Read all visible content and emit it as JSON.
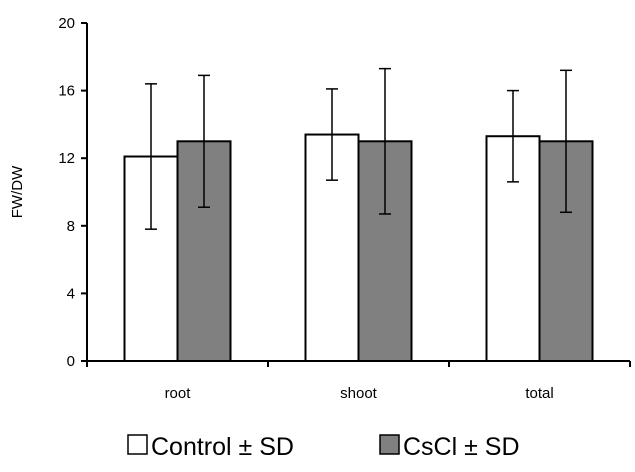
{
  "chart_data": {
    "type": "bar",
    "categories": [
      "root",
      "shoot",
      "total"
    ],
    "series": [
      {
        "name": "Control ± SD",
        "values": [
          12.1,
          13.4,
          13.3
        ],
        "error": [
          4.3,
          2.7,
          2.7
        ],
        "color": "#ffffff"
      },
      {
        "name": "CsCl ± SD",
        "values": [
          13.0,
          13.0,
          13.0
        ],
        "error": [
          3.9,
          4.3,
          4.2
        ],
        "color": "#808080"
      }
    ],
    "ylabel": "FW/DW",
    "xlabel": "",
    "ylim": [
      0,
      20
    ],
    "yticks": [
      0,
      4,
      8,
      12,
      16,
      20
    ],
    "grid": false,
    "legend_position": "bottom"
  }
}
